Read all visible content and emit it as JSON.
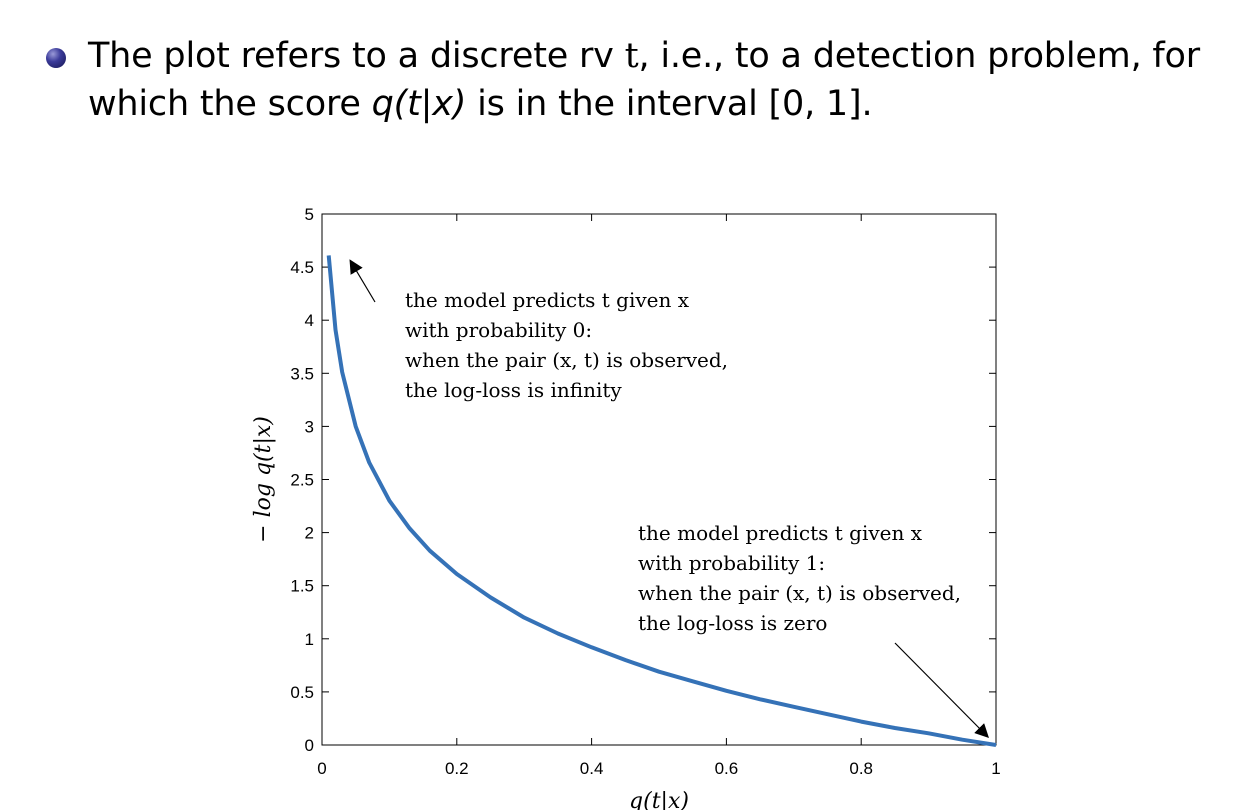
{
  "bullet": {
    "line1_a": "The plot refers to a discrete rv ",
    "line1_rv": "t",
    "line1_b": ", i.e., to a detection problem, for",
    "line2_a": "which the score ",
    "line2_score": "q(t|x)",
    "line2_b": " is in the interval [0, 1]."
  },
  "chart_data": {
    "type": "line",
    "xlabel": "q(t|x)",
    "ylabel": "− log q(t|x)",
    "xlim": [
      0,
      1
    ],
    "ylim": [
      0,
      5
    ],
    "x_ticks": [
      0,
      0.2,
      0.4,
      0.6,
      0.8,
      1
    ],
    "x_tick_labels": [
      "0",
      "0.2",
      "0.4",
      "0.6",
      "0.8",
      "1"
    ],
    "y_ticks": [
      0,
      0.5,
      1,
      1.5,
      2,
      2.5,
      3,
      3.5,
      4,
      4.5,
      5
    ],
    "y_tick_labels": [
      "0",
      "0.5",
      "1",
      "1.5",
      "2",
      "2.5",
      "3",
      "3.5",
      "4",
      "4.5",
      "5"
    ],
    "grid": false,
    "series": [
      {
        "function": "-ln(x)",
        "color": "#3572b7",
        "x": [
          0.01,
          0.02,
          0.03,
          0.05,
          0.07,
          0.1,
          0.13,
          0.16,
          0.2,
          0.25,
          0.3,
          0.35,
          0.4,
          0.45,
          0.5,
          0.55,
          0.6,
          0.65,
          0.7,
          0.75,
          0.8,
          0.85,
          0.9,
          0.95,
          1.0
        ],
        "y": [
          4.61,
          3.91,
          3.51,
          3.0,
          2.66,
          2.3,
          2.04,
          1.83,
          1.61,
          1.39,
          1.2,
          1.05,
          0.92,
          0.8,
          0.69,
          0.6,
          0.51,
          0.43,
          0.36,
          0.29,
          0.22,
          0.16,
          0.11,
          0.05,
          0.0
        ]
      }
    ],
    "annotations": [
      {
        "lines": [
          "the model predicts t given x",
          "with probability 0:",
          "when the pair (x, t) is observed,",
          "the log-loss is infinity"
        ],
        "arrow_target": [
          0.03,
          4.6
        ],
        "text_anchor": [
          0.124,
          4.27
        ]
      },
      {
        "lines": [
          "the model predicts t given x",
          "with probability 1:",
          "when the pair (x, t) is observed,",
          "the log-loss is zero"
        ],
        "arrow_target": [
          1.0,
          0.0
        ],
        "text_anchor": [
          0.47,
          2.07
        ]
      }
    ]
  }
}
